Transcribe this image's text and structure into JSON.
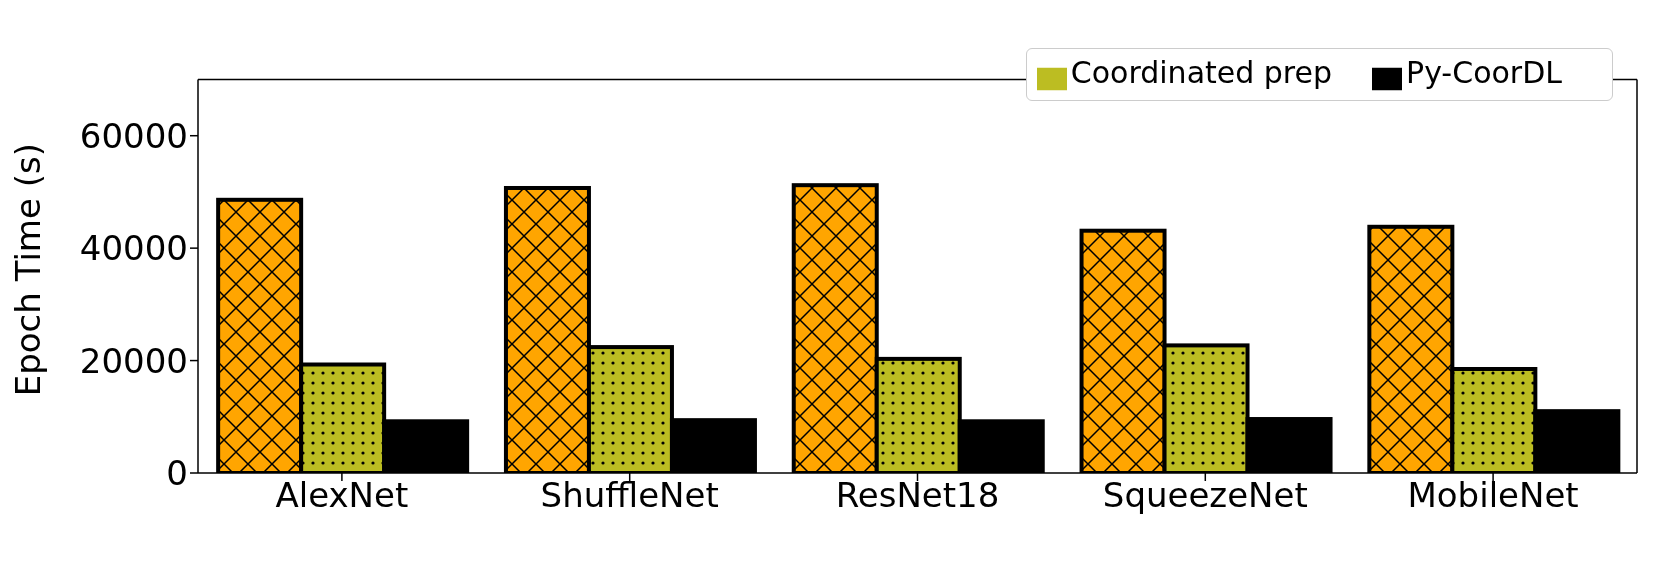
{
  "chart_data": {
    "type": "bar",
    "ylabel": "Epoch Time (s)",
    "categories": [
      "AlexNet",
      "ShuffleNet",
      "ResNet18",
      "SqueezeNet",
      "MobileNet"
    ],
    "series": [
      {
        "color": "#ffa500",
        "values": [
          48600,
          50700,
          51200,
          43100,
          43800
        ]
      },
      {
        "name": "Coordinated prep",
        "color": "#bcbd22",
        "values": [
          19300,
          22400,
          20300,
          22700,
          18500
        ]
      },
      {
        "name": "Py-CoorDL",
        "color": "#000000",
        "values": [
          9200,
          9400,
          9200,
          9600,
          11000
        ]
      }
    ],
    "ylim": [
      0,
      70000
    ],
    "yticks": [
      0,
      20000,
      40000,
      60000
    ],
    "grid": false,
    "legend": "top right"
  }
}
